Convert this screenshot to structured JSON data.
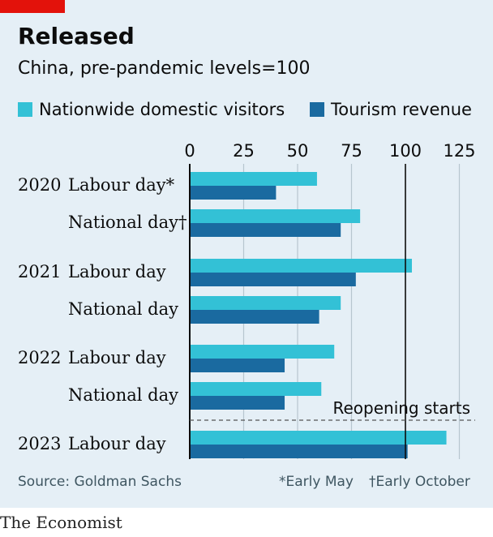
{
  "colors": {
    "background": "#e5eff6",
    "accent_tag": "#e3120b",
    "series_light": "#33c1d6",
    "series_dark": "#1a6aa0",
    "grid": "#b7c6cf",
    "text": "#0c0c0c",
    "muted_text": "#3f5661"
  },
  "header": {
    "title": "Released",
    "subtitle": "China, pre-pandemic levels=100"
  },
  "legend": {
    "items": [
      {
        "label": "Nationwide domestic visitors",
        "color": "#33c1d6"
      },
      {
        "label": "Tourism revenue",
        "color": "#1a6aa0"
      }
    ]
  },
  "chart_data": {
    "type": "bar",
    "orientation": "horizontal",
    "title": "Released",
    "subtitle": "China, pre-pandemic levels=100",
    "xlim": [
      0,
      125
    ],
    "xticks": [
      0,
      25,
      50,
      75,
      100,
      125
    ],
    "tick_labels": [
      "0",
      "25",
      "50",
      "75",
      "100",
      "125"
    ],
    "grid": true,
    "legend_position": "top",
    "reference_line": {
      "x": 100
    },
    "categories": [
      {
        "year": "2020",
        "label": "Labour day*"
      },
      {
        "year": "",
        "label": "National day†"
      },
      {
        "year": "2021",
        "label": "Labour day"
      },
      {
        "year": "",
        "label": "National day"
      },
      {
        "year": "2022",
        "label": "Labour day"
      },
      {
        "year": "",
        "label": "National day"
      },
      {
        "year": "2023",
        "label": "Labour day"
      }
    ],
    "series": [
      {
        "name": "Nationwide domestic visitors",
        "values": [
          59,
          79,
          103,
          70,
          67,
          61,
          119
        ]
      },
      {
        "name": "Tourism revenue",
        "values": [
          40,
          70,
          77,
          60,
          44,
          44,
          101
        ]
      }
    ],
    "annotation": {
      "text": "Reopening starts",
      "after_category_index": 5
    }
  },
  "footer": {
    "source": "Source: Goldman Sachs",
    "footnote_1": "*Early May",
    "footnote_2": "†Early October",
    "brand": "The Economist"
  }
}
